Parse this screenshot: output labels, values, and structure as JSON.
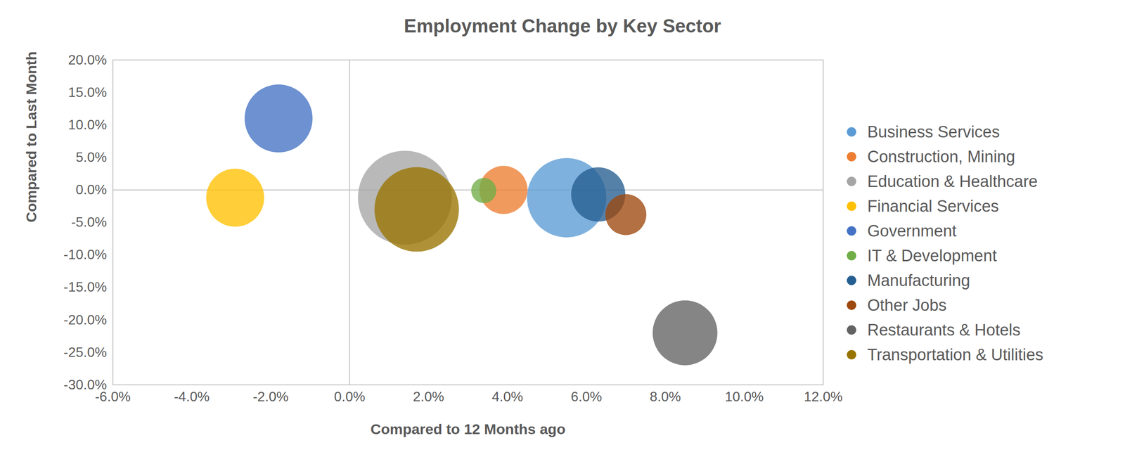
{
  "chart_data": {
    "type": "scatter",
    "title": "Employment Change by Key Sector",
    "x_label": "Compared to 12 Months ago",
    "y_label": "Compared to Last Month",
    "xlim": [
      -6,
      12
    ],
    "ylim": [
      -30,
      20
    ],
    "xticks": [
      {
        "value": -6,
        "label": "-6.0%"
      },
      {
        "value": -4,
        "label": "-4.0%"
      },
      {
        "value": -2,
        "label": "-2.0%"
      },
      {
        "value": 0,
        "label": "0.0%"
      },
      {
        "value": 2,
        "label": "2.0%"
      },
      {
        "value": 4,
        "label": "4.0%"
      },
      {
        "value": 6,
        "label": "6.0%"
      },
      {
        "value": 8,
        "label": "8.0%"
      },
      {
        "value": 10,
        "label": "10.0%"
      },
      {
        "value": 12,
        "label": "12.0%"
      }
    ],
    "yticks": [
      {
        "value": -30,
        "label": "-30.0%"
      },
      {
        "value": -25,
        "label": "-25.0%"
      },
      {
        "value": -20,
        "label": "-20.0%"
      },
      {
        "value": -15,
        "label": "-15.0%"
      },
      {
        "value": -10,
        "label": "-10.0%"
      },
      {
        "value": -5,
        "label": "-5.0%"
      },
      {
        "value": 0,
        "label": "0.0%"
      },
      {
        "value": 5,
        "label": "5.0%"
      },
      {
        "value": 10,
        "label": "10.0%"
      },
      {
        "value": 15,
        "label": "15.0%"
      },
      {
        "value": 20,
        "label": "20.0%"
      }
    ],
    "grid": false,
    "legend": "right",
    "marker": "circle",
    "series": [
      {
        "name": "Business Services",
        "color": "#5b9bd5",
        "x": 5.5,
        "y": -1.2,
        "size": 30
      },
      {
        "name": "Construction, Mining",
        "color": "#ed7d31",
        "x": 3.9,
        "y": 0.0,
        "size": 11
      },
      {
        "name": "Education & Healthcare",
        "color": "#a5a5a5",
        "x": 1.4,
        "y": -1.2,
        "size": 42
      },
      {
        "name": "Financial Services",
        "color": "#ffc000",
        "x": -2.9,
        "y": -1.2,
        "size": 16
      },
      {
        "name": "Government",
        "color": "#4472c4",
        "x": -1.8,
        "y": 11.0,
        "size": 22
      },
      {
        "name": "IT & Development",
        "color": "#70ad47",
        "x": 3.4,
        "y": -0.1,
        "size": 3
      },
      {
        "name": "Manufacturing",
        "color": "#255e91",
        "x": 6.3,
        "y": -0.7,
        "size": 14
      },
      {
        "name": "Other Jobs",
        "color": "#9e480e",
        "x": 7.0,
        "y": -3.8,
        "size": 8
      },
      {
        "name": "Restaurants & Hotels",
        "color": "#636363",
        "x": 8.5,
        "y": -22.0,
        "size": 20
      },
      {
        "name": "Transportation & Utilities",
        "color": "#997300",
        "x": 1.7,
        "y": -3.0,
        "size": 34
      }
    ]
  }
}
